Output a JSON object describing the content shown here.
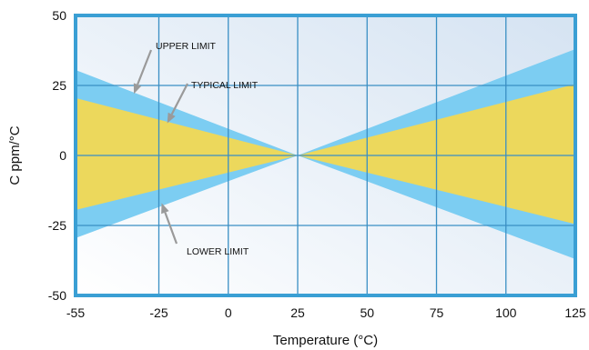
{
  "chart_data": {
    "type": "area",
    "xlabel": "Temperature (°C)",
    "ylabel": "C ppm/°C",
    "xlim": [
      -55,
      125
    ],
    "ylim": [
      -50,
      50
    ],
    "x_ticks": [
      -55,
      -25,
      0,
      25,
      50,
      75,
      100,
      125
    ],
    "y_ticks": [
      -50,
      -25,
      0,
      25,
      50
    ],
    "x_tick_labels": [
      "-55",
      "-25",
      "0",
      "25",
      "50",
      "75",
      "100",
      "125"
    ],
    "y_tick_labels": [
      "-50",
      "-25",
      "0",
      "25",
      "50"
    ],
    "grid": true,
    "colors": {
      "frame": "#3a9fd4",
      "grid": "#3a8fc4",
      "outer_band": "#7ccdf2",
      "typical_band": "#ecd85c",
      "background_light": "#ffffff",
      "background_dark": "#d5e3f2",
      "arrow": "#9a9a9a"
    },
    "series": [
      {
        "name": "UPPER LIMIT",
        "x": [
          -55,
          25,
          125
        ],
        "upper": [
          30.5,
          0,
          38
        ],
        "lower": [
          -29.5,
          0,
          -37
        ]
      },
      {
        "name": "TYPICAL LIMIT",
        "x": [
          -55,
          25,
          125
        ],
        "upper": [
          20.5,
          0,
          25.5
        ],
        "lower": [
          -19.5,
          0,
          -24.5
        ]
      }
    ],
    "annotations": [
      {
        "text": "UPPER LIMIT",
        "target": {
          "x": -34,
          "y": 22
        }
      },
      {
        "text": "TYPICAL LIMIT",
        "target": {
          "x": -22,
          "y": 11.5
        }
      },
      {
        "text": "LOWER LIMIT",
        "target": {
          "x": -24,
          "y": -17
        }
      }
    ]
  }
}
